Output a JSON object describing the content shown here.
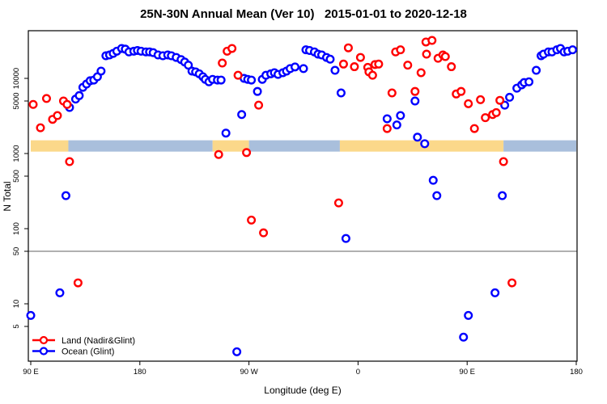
{
  "title": "25N-30N Annual Mean (Ver 10)   2015-01-01 to 2020-12-18",
  "colors": {
    "land_series": "#ff0000",
    "ocean_series": "#0000ff",
    "land_band": "#fbd88a",
    "ocean_band": "#a9bfdc",
    "ref_line": "#808080",
    "axis": "#000000"
  },
  "legend": {
    "items": [
      {
        "label": "Land (Nadir&Glint)",
        "color": "#ff0000"
      },
      {
        "label": "Ocean (Glint)",
        "color": "#0000ff"
      }
    ]
  },
  "chart_data": {
    "type": "scatter",
    "title": "25N-30N Annual Mean (Ver 10)   2015-01-01 to 2020-12-18",
    "xlabel": "Longitude (deg E)",
    "ylabel": "N Total",
    "x_axis": {
      "span_deg": 450,
      "ticks_deg": [
        0,
        90,
        180,
        270,
        360,
        450
      ],
      "tick_labels": [
        "90 E",
        "180",
        "90 W",
        "0",
        "90 E",
        "180"
      ]
    },
    "y_axis": {
      "scale": "log",
      "ticks": [
        5,
        10,
        50,
        100,
        500,
        1000,
        5000,
        10000
      ],
      "tick_labels": [
        "5",
        "10",
        "50",
        "100",
        "500",
        "1000",
        "5000",
        "10000"
      ],
      "ylim": [
        1.7,
        43000
      ]
    },
    "reference_line_y": 50,
    "grid": false,
    "legend_position": "bottom-left-inside",
    "land_ocean_band": {
      "value_range": [
        1060,
        1500
      ],
      "segments": [
        {
          "from_deg": 0,
          "to_deg": 31,
          "type": "land"
        },
        {
          "from_deg": 31,
          "to_deg": 150,
          "type": "ocean"
        },
        {
          "from_deg": 150,
          "to_deg": 180,
          "type": "land"
        },
        {
          "from_deg": 180,
          "to_deg": 255,
          "type": "ocean"
        },
        {
          "from_deg": 255,
          "to_deg": 390,
          "type": "land"
        },
        {
          "from_deg": 390,
          "to_deg": 450,
          "type": "ocean"
        }
      ]
    },
    "series": [
      {
        "name": "Ocean (Glint)",
        "color": "#0000ff",
        "points": [
          [
            32,
            4100
          ],
          [
            37,
            5300
          ],
          [
            40,
            5900
          ],
          [
            43,
            7600
          ],
          [
            46,
            8400
          ],
          [
            49,
            9300
          ],
          [
            52,
            9500
          ],
          [
            55,
            10500
          ],
          [
            58,
            12500
          ],
          [
            62,
            20000
          ],
          [
            65,
            20500
          ],
          [
            68,
            21500
          ],
          [
            71,
            23000
          ],
          [
            75,
            25000
          ],
          [
            78,
            24500
          ],
          [
            81,
            22500
          ],
          [
            85,
            23000
          ],
          [
            88,
            23500
          ],
          [
            91,
            23000
          ],
          [
            95,
            22500
          ],
          [
            98,
            22500
          ],
          [
            101,
            22000
          ],
          [
            105,
            20500
          ],
          [
            109,
            20000
          ],
          [
            113,
            20500
          ],
          [
            116,
            20000
          ],
          [
            120,
            19000
          ],
          [
            124,
            17800
          ],
          [
            127,
            16500
          ],
          [
            130,
            15000
          ],
          [
            133,
            12500
          ],
          [
            136,
            12200
          ],
          [
            139,
            11500
          ],
          [
            142,
            10500
          ],
          [
            144,
            9700
          ],
          [
            147,
            9000
          ],
          [
            150,
            9700
          ],
          [
            154,
            9500
          ],
          [
            157,
            9500
          ],
          [
            161,
            1870
          ],
          [
            174,
            3300
          ],
          [
            176,
            10000
          ],
          [
            179,
            9700
          ],
          [
            182,
            9500
          ],
          [
            187,
            6700
          ],
          [
            191,
            9700
          ],
          [
            194,
            11000
          ],
          [
            198,
            11500
          ],
          [
            201,
            11900
          ],
          [
            204,
            11300
          ],
          [
            208,
            11900
          ],
          [
            211,
            12500
          ],
          [
            214,
            13500
          ],
          [
            218,
            14200
          ],
          [
            225,
            13500
          ],
          [
            227,
            24000
          ],
          [
            230,
            23500
          ],
          [
            234,
            22500
          ],
          [
            237,
            21000
          ],
          [
            240,
            20500
          ],
          [
            244,
            19000
          ],
          [
            247,
            18000
          ],
          [
            251,
            12800
          ],
          [
            256,
            6400
          ],
          [
            294,
            2900
          ],
          [
            302,
            2400
          ],
          [
            305,
            3200
          ],
          [
            317,
            5000
          ],
          [
            319,
            1650
          ],
          [
            325,
            1350
          ],
          [
            391,
            4400
          ],
          [
            395,
            5600
          ],
          [
            401,
            7400
          ],
          [
            405,
            8200
          ],
          [
            407,
            8800
          ],
          [
            411,
            9000
          ],
          [
            417,
            12800
          ],
          [
            421,
            20000
          ],
          [
            423,
            21000
          ],
          [
            427,
            22500
          ],
          [
            430,
            22500
          ],
          [
            434,
            24000
          ],
          [
            437,
            25000
          ],
          [
            440,
            22500
          ],
          [
            443,
            23000
          ],
          [
            447,
            24000
          ],
          [
            29,
            275
          ],
          [
            260,
            74
          ],
          [
            332,
            440
          ],
          [
            335,
            275
          ],
          [
            389,
            275
          ],
          [
            0,
            7
          ],
          [
            24,
            14
          ],
          [
            170,
            2.3
          ],
          [
            357,
            3.6
          ],
          [
            361,
            7
          ],
          [
            383,
            14
          ]
        ]
      },
      {
        "name": "Land (Nadir&Glint)",
        "color": "#ff0000",
        "points": [
          [
            2,
            4500
          ],
          [
            8,
            2200
          ],
          [
            13,
            5400
          ],
          [
            18,
            2850
          ],
          [
            22,
            3200
          ],
          [
            27,
            5000
          ],
          [
            30,
            4500
          ],
          [
            158,
            16000
          ],
          [
            162,
            23000
          ],
          [
            166,
            25000
          ],
          [
            171,
            11000
          ],
          [
            188,
            4400
          ],
          [
            258,
            15500
          ],
          [
            262,
            25500
          ],
          [
            267,
            14300
          ],
          [
            272,
            19000
          ],
          [
            278,
            14000
          ],
          [
            279,
            12200
          ],
          [
            282,
            11000
          ],
          [
            284,
            15300
          ],
          [
            287,
            15500
          ],
          [
            294,
            2150
          ],
          [
            298,
            6400
          ],
          [
            301,
            22500
          ],
          [
            305,
            24000
          ],
          [
            311,
            15000
          ],
          [
            317,
            6700
          ],
          [
            322,
            11900
          ],
          [
            326,
            30500
          ],
          [
            326.5,
            21000
          ],
          [
            331,
            32000
          ],
          [
            336,
            18500
          ],
          [
            340,
            20500
          ],
          [
            342,
            19500
          ],
          [
            347,
            14300
          ],
          [
            351,
            6200
          ],
          [
            355,
            6700
          ],
          [
            361,
            4600
          ],
          [
            366,
            2150
          ],
          [
            371,
            5200
          ],
          [
            375,
            3000
          ],
          [
            381,
            3300
          ],
          [
            384,
            3500
          ],
          [
            387,
            5100
          ],
          [
            32,
            780
          ],
          [
            155,
            970
          ],
          [
            178,
            1030
          ],
          [
            182,
            130
          ],
          [
            192,
            88
          ],
          [
            254,
            220
          ],
          [
            390,
            780
          ],
          [
            39,
            19
          ],
          [
            397,
            19
          ]
        ]
      }
    ]
  }
}
